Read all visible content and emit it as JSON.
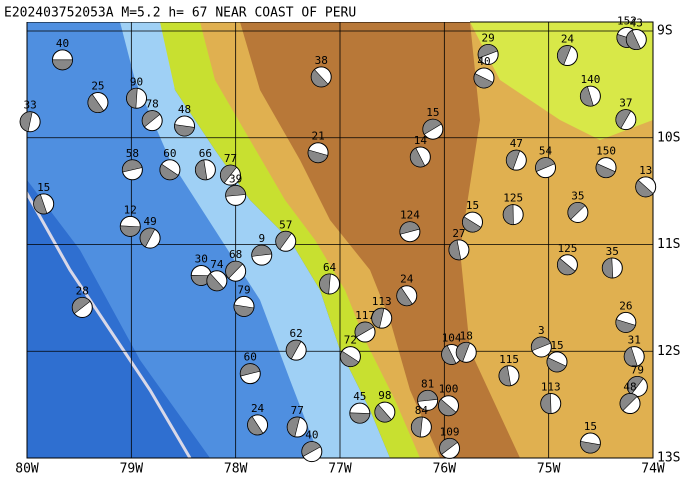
{
  "map": {
    "title": "E202403752053A M=5.2 h= 67 NEAR COAST OF PERU",
    "xlim": [
      -80,
      -74
    ],
    "ylim": [
      -13,
      -9
    ],
    "xticks": [
      {
        "value": -80,
        "label": "80W"
      },
      {
        "value": -79,
        "label": "79W"
      },
      {
        "value": -78,
        "label": "78W"
      },
      {
        "value": -77,
        "label": "77W"
      },
      {
        "value": -76,
        "label": "76W"
      },
      {
        "value": -75,
        "label": "75W"
      },
      {
        "value": -74,
        "label": "74W"
      }
    ],
    "yticks": [
      {
        "value": -9,
        "label": "9S"
      },
      {
        "value": -10,
        "label": "10S"
      },
      {
        "value": -11,
        "label": "11S"
      },
      {
        "value": -12,
        "label": "12S"
      },
      {
        "value": -13,
        "label": "13S"
      }
    ],
    "events": [
      {
        "lon": -79.66,
        "lat": -9.27,
        "depth": 40
      },
      {
        "lon": -77.18,
        "lat": -9.43,
        "depth": 38
      },
      {
        "lon": -78.95,
        "lat": -9.63,
        "depth": 90
      },
      {
        "lon": -78.8,
        "lat": -9.84,
        "depth": 78
      },
      {
        "lon": -78.49,
        "lat": -9.89,
        "depth": 48
      },
      {
        "lon": -79.32,
        "lat": -9.67,
        "depth": 25
      },
      {
        "lon": -79.97,
        "lat": -9.85,
        "depth": 33
      },
      {
        "lon": -76.11,
        "lat": -9.92,
        "depth": 15
      },
      {
        "lon": -77.21,
        "lat": -10.14,
        "depth": 21
      },
      {
        "lon": -76.23,
        "lat": -10.18,
        "depth": 14
      },
      {
        "lon": -75.31,
        "lat": -10.21,
        "depth": 47
      },
      {
        "lon": -75.03,
        "lat": -10.28,
        "depth": 54
      },
      {
        "lon": -74.45,
        "lat": -10.28,
        "depth": 150
      },
      {
        "lon": -79.84,
        "lat": -10.62,
        "depth": 15
      },
      {
        "lon": -78.82,
        "lat": -10.94,
        "depth": 49
      },
      {
        "lon": -76.33,
        "lat": -10.88,
        "depth": 124
      },
      {
        "lon": -75.73,
        "lat": -10.79,
        "depth": 15
      },
      {
        "lon": -75.86,
        "lat": -11.05,
        "depth": 27
      },
      {
        "lon": -77.52,
        "lat": -10.97,
        "depth": 57
      },
      {
        "lon": -77.75,
        "lat": -11.1,
        "depth": 9
      },
      {
        "lon": -74.82,
        "lat": -11.19,
        "depth": 125
      },
      {
        "lon": -74.39,
        "lat": -11.22,
        "depth": 35
      },
      {
        "lon": -78.0,
        "lat": -11.25,
        "depth": 68
      },
      {
        "lon": -78.33,
        "lat": -11.29,
        "depth": 30
      },
      {
        "lon": -78.18,
        "lat": -11.34,
        "depth": 74
      },
      {
        "lon": -77.1,
        "lat": -11.37,
        "depth": 64
      },
      {
        "lon": -79.47,
        "lat": -11.59,
        "depth": 28
      },
      {
        "lon": -77.92,
        "lat": -11.58,
        "depth": 79
      },
      {
        "lon": -76.36,
        "lat": -11.48,
        "depth": 24
      },
      {
        "lon": -76.6,
        "lat": -11.69,
        "depth": 113
      },
      {
        "lon": -76.76,
        "lat": -11.82,
        "depth": 117
      },
      {
        "lon": -74.26,
        "lat": -11.73,
        "depth": 26
      },
      {
        "lon": -75.93,
        "lat": -12.03,
        "depth": 104
      },
      {
        "lon": -75.79,
        "lat": -12.01,
        "depth": 18
      },
      {
        "lon": -75.07,
        "lat": -11.96,
        "depth": 3
      },
      {
        "lon": -74.92,
        "lat": -12.1,
        "depth": 15
      },
      {
        "lon": -74.18,
        "lat": -12.05,
        "depth": 31
      },
      {
        "lon": -77.42,
        "lat": -11.99,
        "depth": 62
      },
      {
        "lon": -77.86,
        "lat": -12.21,
        "depth": 60
      },
      {
        "lon": -76.9,
        "lat": -12.05,
        "depth": 72
      },
      {
        "lon": -75.38,
        "lat": -12.23,
        "depth": 115
      },
      {
        "lon": -74.15,
        "lat": -12.33,
        "depth": 79
      },
      {
        "lon": -76.16,
        "lat": -12.46,
        "depth": 81
      },
      {
        "lon": -75.96,
        "lat": -12.51,
        "depth": 100
      },
      {
        "lon": -74.98,
        "lat": -12.49,
        "depth": 113
      },
      {
        "lon": -74.22,
        "lat": -12.49,
        "depth": 48
      },
      {
        "lon": -76.81,
        "lat": -12.58,
        "depth": 45
      },
      {
        "lon": -76.57,
        "lat": -12.57,
        "depth": 98
      },
      {
        "lon": -76.22,
        "lat": -12.71,
        "depth": 84
      },
      {
        "lon": -75.95,
        "lat": -12.91,
        "depth": 109
      },
      {
        "lon": -74.6,
        "lat": -12.86,
        "depth": 15
      },
      {
        "lon": -77.79,
        "lat": -12.69,
        "depth": 24
      },
      {
        "lon": -77.41,
        "lat": -12.71,
        "depth": 77
      },
      {
        "lon": -77.27,
        "lat": -12.94,
        "depth": 40
      },
      {
        "lon": -74.25,
        "lat": -9.06,
        "depth": 152
      },
      {
        "lon": -74.16,
        "lat": -9.08,
        "depth": 43
      },
      {
        "lon": -74.82,
        "lat": -9.23,
        "depth": 24
      },
      {
        "lon": -75.58,
        "lat": -9.22,
        "depth": 29
      },
      {
        "lon": -75.62,
        "lat": -9.44,
        "depth": 40
      },
      {
        "lon": -74.6,
        "lat": -9.61,
        "depth": 140
      },
      {
        "lon": -74.26,
        "lat": -9.83,
        "depth": 37
      },
      {
        "lon": -78.99,
        "lat": -10.3,
        "depth": 58
      },
      {
        "lon": -78.63,
        "lat": -10.3,
        "depth": 60
      },
      {
        "lon": -78.29,
        "lat": -10.3,
        "depth": 66
      },
      {
        "lon": -78.05,
        "lat": -10.35,
        "depth": 77
      },
      {
        "lon": -78.0,
        "lat": -10.54,
        "depth": 39
      },
      {
        "lon": -74.07,
        "lat": -10.46,
        "depth": 13
      },
      {
        "lon": -75.34,
        "lat": -10.72,
        "depth": 125
      },
      {
        "lon": -74.72,
        "lat": -10.7,
        "depth": 35
      },
      {
        "lon": -79.01,
        "lat": -10.83,
        "depth": 12
      }
    ]
  }
}
